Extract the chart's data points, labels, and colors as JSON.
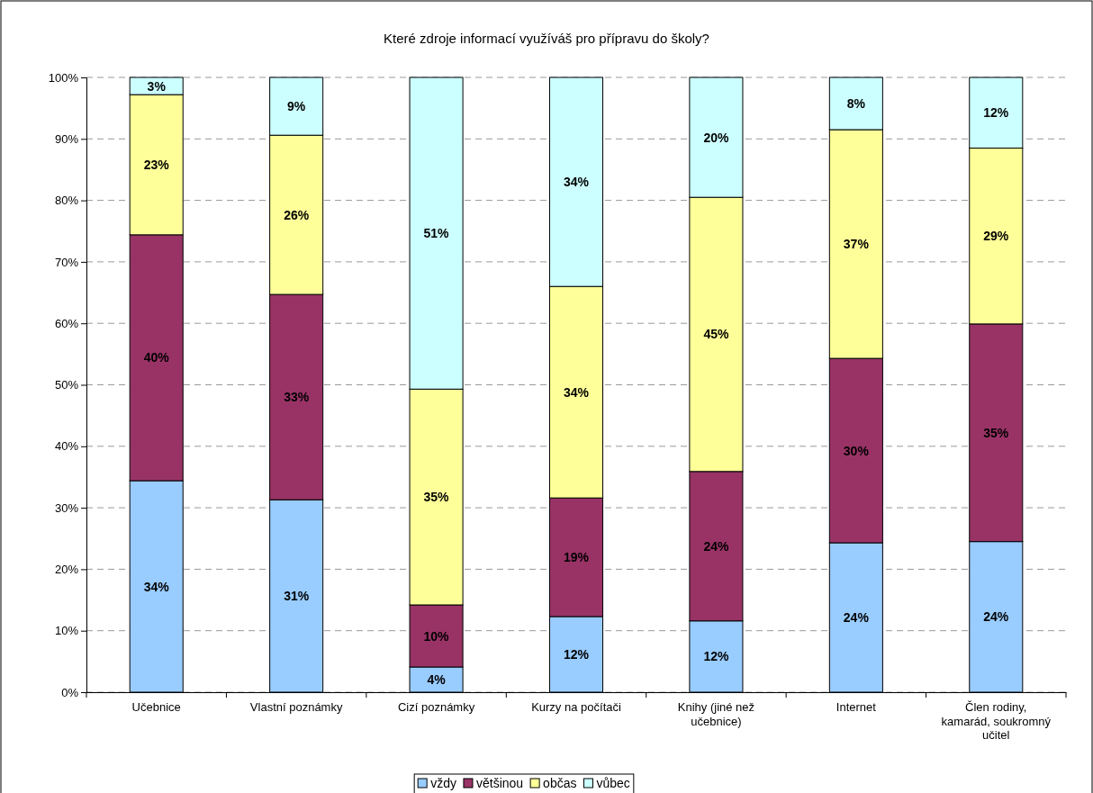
{
  "chart_data": {
    "type": "bar",
    "title": "Které zdroje informací využíváš pro přípravu do školy?",
    "categories": [
      "Učebnice",
      "Vlastní poznámky",
      "Cizí poznámky",
      "Kurzy na počítači",
      "Knihy (jiné než učebnice)",
      "Internet",
      "Člen rodiny, kamarád, soukromný učitel"
    ],
    "stacked": true,
    "series": [
      {
        "name": "vždy",
        "color": "#99ccff",
        "values": [
          34.4,
          31.3,
          4.1,
          12.3,
          11.6,
          24.3,
          24.5
        ],
        "value_labels": [
          "34%",
          "31%",
          "4%",
          "12%",
          "12%",
          "24%",
          "24%"
        ]
      },
      {
        "name": "většinou",
        "color": "#993366",
        "values": [
          40.0,
          33.4,
          10.1,
          19.3,
          24.3,
          30.0,
          35.4
        ],
        "value_labels": [
          "40%",
          "33%",
          "10%",
          "19%",
          "24%",
          "30%",
          "35%"
        ]
      },
      {
        "name": "občas",
        "color": "#ffff99",
        "values": [
          22.8,
          25.9,
          35.1,
          34.4,
          44.6,
          37.2,
          28.6
        ],
        "value_labels": [
          "23%",
          "26%",
          "35%",
          "34%",
          "45%",
          "37%",
          "29%"
        ]
      },
      {
        "name": "vůbec",
        "color": "#ccffff",
        "values": [
          2.8,
          9.4,
          50.7,
          34.0,
          19.5,
          8.5,
          11.5
        ],
        "value_labels": [
          "3%",
          "9%",
          "51%",
          "34%",
          "20%",
          "8%",
          "12%"
        ]
      }
    ],
    "ylim": [
      0,
      100
    ],
    "yticks": [
      {
        "value": 0,
        "label": "0%"
      },
      {
        "value": 10,
        "label": "10%"
      },
      {
        "value": 20,
        "label": "20%"
      },
      {
        "value": 30,
        "label": "30%"
      },
      {
        "value": 40,
        "label": "40%"
      },
      {
        "value": 50,
        "label": "50%"
      },
      {
        "value": 60,
        "label": "60%"
      },
      {
        "value": 70,
        "label": "70%"
      },
      {
        "value": 80,
        "label": "80%"
      },
      {
        "value": 90,
        "label": "90%"
      },
      {
        "value": 100,
        "label": "100%"
      }
    ],
    "grid": "y",
    "legend": "bottom"
  }
}
